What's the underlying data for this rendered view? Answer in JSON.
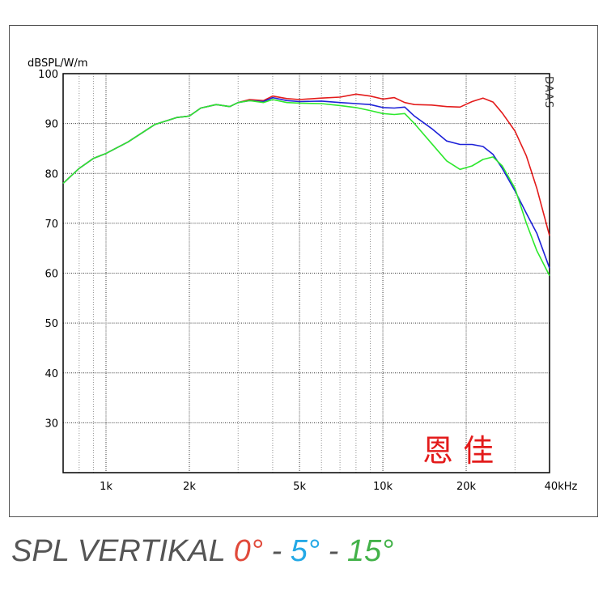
{
  "caption": {
    "title": "SPL VERTIKAL",
    "angle_0": "0°",
    "sep1": "-",
    "angle_5": "5°",
    "sep2": "-",
    "angle_15": "15°"
  },
  "watermark": "DAAS",
  "annotation": "恩 佳",
  "colors": {
    "red": "#e31b1b",
    "blue": "#1e22d8",
    "green": "#2ee82e",
    "grid": "#555555"
  },
  "chart_data": {
    "type": "line",
    "ylabel": "dBSPL/W/m",
    "xscale": "log",
    "xlim": [
      700,
      40000
    ],
    "ylim": [
      20,
      100
    ],
    "x_ticks": [
      {
        "value": 1000,
        "label": "1k"
      },
      {
        "value": 2000,
        "label": "2k"
      },
      {
        "value": 5000,
        "label": "5k"
      },
      {
        "value": 10000,
        "label": "10k"
      },
      {
        "value": 20000,
        "label": "20k"
      },
      {
        "value": 40000,
        "label": "40kHz"
      }
    ],
    "y_ticks": [
      100,
      90,
      80,
      70,
      60,
      50,
      40,
      30
    ],
    "grid": true,
    "series": [
      {
        "color": "#e31b1b",
        "x": [
          700,
          800,
          900,
          1000,
          1200,
          1500,
          1800,
          2000,
          2200,
          2500,
          2800,
          3000,
          3300,
          3700,
          4000,
          4500,
          5000,
          6000,
          7000,
          8000,
          9000,
          10000,
          11000,
          12000,
          13000,
          15000,
          17000,
          19000,
          21000,
          23000,
          25000,
          27000,
          30000,
          33000,
          36000,
          40000
        ],
        "y": [
          78,
          81,
          83,
          84,
          86.3,
          89.8,
          91.2,
          91.5,
          93.1,
          93.8,
          93.4,
          94.2,
          94.8,
          94.6,
          95.5,
          95,
          94.8,
          95.1,
          95.3,
          95.9,
          95.5,
          94.9,
          95.2,
          94.2,
          93.8,
          93.7,
          93.4,
          93.3,
          94.4,
          95.1,
          94.3,
          92.1,
          88.5,
          83.5,
          77,
          67.5
        ]
      },
      {
        "color": "#1e22d8",
        "x": [
          700,
          800,
          900,
          1000,
          1200,
          1500,
          1800,
          2000,
          2200,
          2500,
          2800,
          3000,
          3300,
          3700,
          4000,
          4500,
          5000,
          6000,
          7000,
          8000,
          9000,
          10000,
          11000,
          12000,
          13000,
          15000,
          17000,
          19000,
          21000,
          23000,
          25000,
          27000,
          30000,
          33000,
          36000,
          40000
        ],
        "y": [
          78,
          81,
          83,
          84,
          86.3,
          89.8,
          91.2,
          91.5,
          93.1,
          93.8,
          93.4,
          94.2,
          94.6,
          94.4,
          95.2,
          94.6,
          94.4,
          94.5,
          94.2,
          94,
          93.8,
          93.2,
          93.1,
          93.3,
          91.5,
          89,
          86.5,
          85.8,
          85.8,
          85.4,
          83.8,
          81,
          76.5,
          72,
          68,
          61
        ]
      },
      {
        "color": "#2ee82e",
        "x": [
          700,
          800,
          900,
          1000,
          1200,
          1500,
          1800,
          2000,
          2200,
          2500,
          2800,
          3000,
          3300,
          3700,
          4000,
          4500,
          5000,
          6000,
          7000,
          8000,
          9000,
          10000,
          11000,
          12000,
          13000,
          15000,
          17000,
          19000,
          21000,
          23000,
          25000,
          27000,
          30000,
          33000,
          36000,
          40000
        ],
        "y": [
          78,
          81,
          83,
          84,
          86.3,
          89.8,
          91.2,
          91.5,
          93.1,
          93.8,
          93.4,
          94.2,
          94.6,
          94.2,
          94.8,
          94.2,
          94.1,
          94,
          93.6,
          93.2,
          92.6,
          92,
          91.8,
          92,
          90,
          86,
          82.5,
          80.8,
          81.5,
          82.8,
          83.3,
          81.5,
          77,
          70,
          64.5,
          59.5
        ]
      }
    ]
  }
}
